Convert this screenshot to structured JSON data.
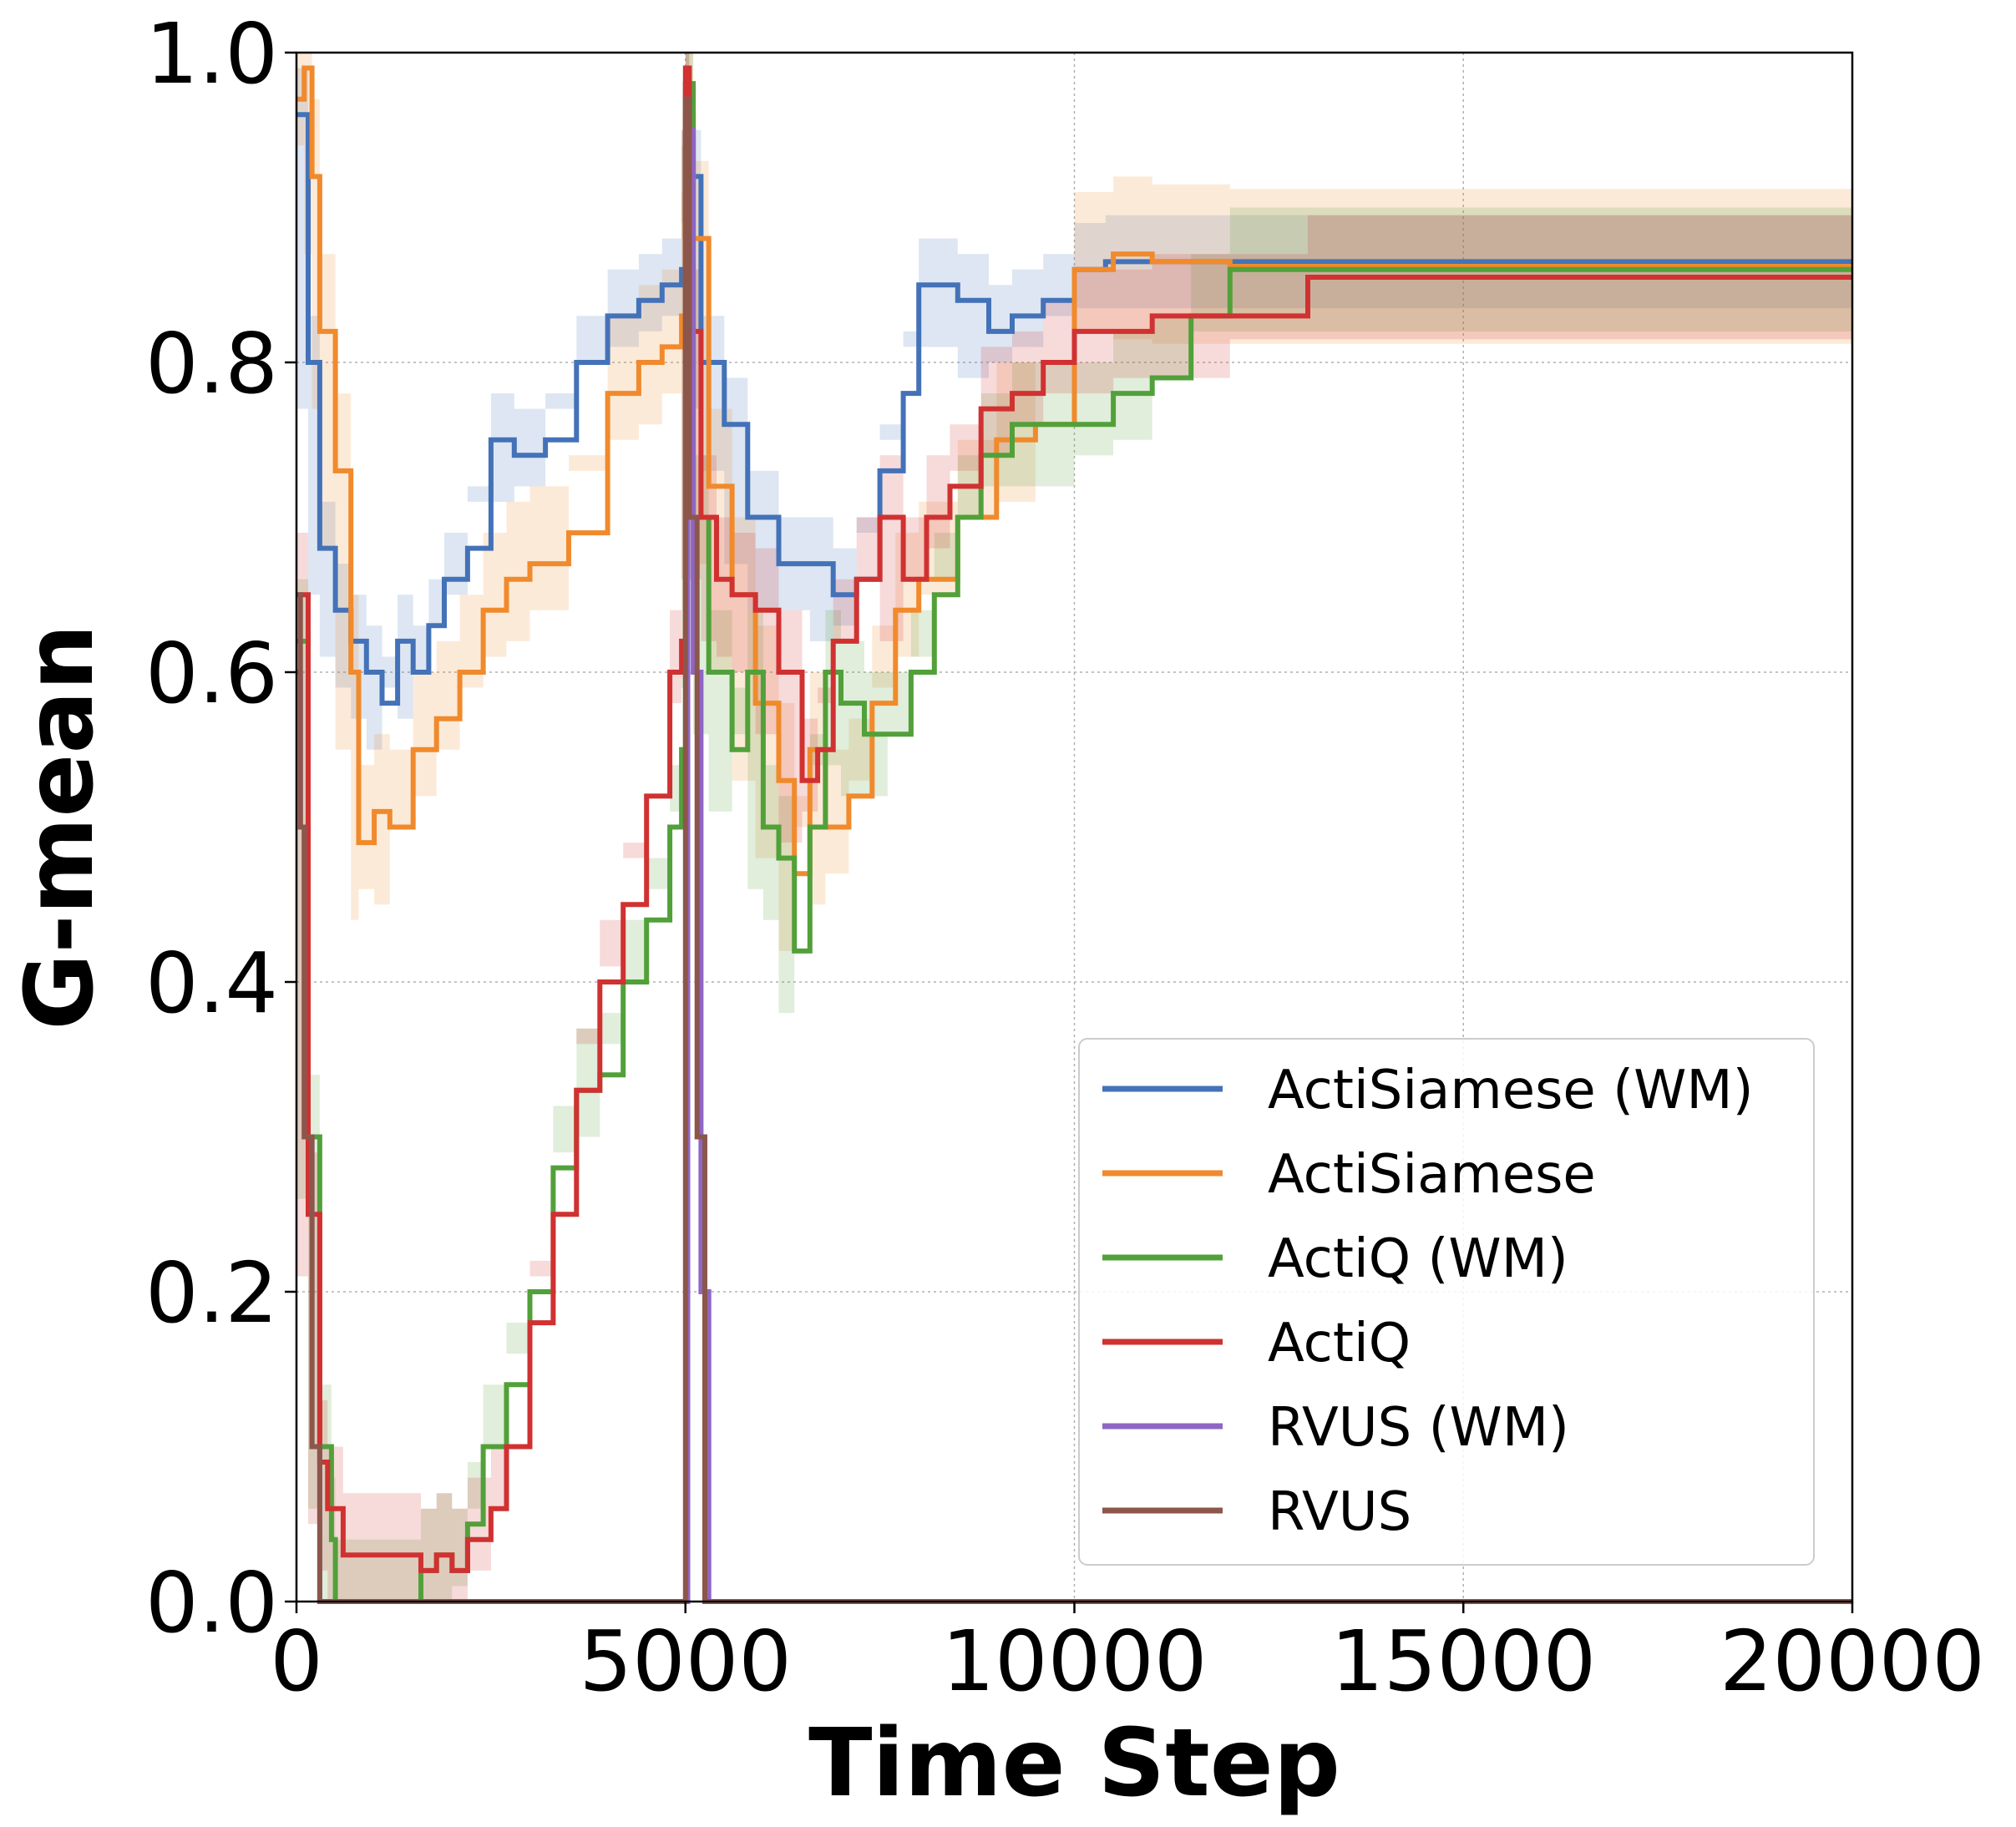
{
  "chart_data": {
    "type": "line",
    "title": "",
    "xlabel": "Time Step",
    "ylabel": "G-mean",
    "xlim": [
      0,
      20000
    ],
    "ylim": [
      0.0,
      1.0
    ],
    "xticks": [
      0,
      5000,
      10000,
      15000,
      20000
    ],
    "xtick_labels": [
      "0",
      "5000",
      "10000",
      "15000",
      "20000"
    ],
    "yticks": [
      0.0,
      0.2,
      0.4,
      0.6,
      0.8,
      1.0
    ],
    "ytick_labels": [
      "0.0",
      "0.2",
      "0.4",
      "0.6",
      "0.8",
      "1.0"
    ],
    "grid": true,
    "legend_position": "lower-right",
    "series": [
      {
        "name": "ActiSiamese (WM)",
        "color": "#4472b8",
        "band": 0.03,
        "x": [
          0,
          150,
          300,
          500,
          700,
          900,
          1100,
          1300,
          1500,
          1700,
          1900,
          2200,
          2500,
          2800,
          3200,
          3600,
          4000,
          4400,
          4700,
          4950,
          5000,
          5050,
          5200,
          5500,
          5800,
          6200,
          6600,
          6900,
          7200,
          7500,
          7800,
          8000,
          8500,
          8900,
          9200,
          9600,
          10000,
          10400,
          11000,
          12000,
          14000,
          16000,
          18000,
          20000
        ],
        "y": [
          0.96,
          0.8,
          0.68,
          0.64,
          0.62,
          0.6,
          0.58,
          0.62,
          0.6,
          0.63,
          0.66,
          0.68,
          0.75,
          0.74,
          0.75,
          0.8,
          0.83,
          0.84,
          0.85,
          0.86,
          0.98,
          0.92,
          0.8,
          0.76,
          0.7,
          0.67,
          0.67,
          0.65,
          0.66,
          0.73,
          0.78,
          0.85,
          0.84,
          0.82,
          0.83,
          0.84,
          0.86,
          0.865,
          0.865,
          0.865,
          0.865,
          0.865,
          0.865,
          0.865
        ]
      },
      {
        "name": "ActiSiamese",
        "color": "#f08a2c",
        "band": 0.05,
        "x": [
          0,
          100,
          200,
          300,
          500,
          700,
          800,
          1000,
          1200,
          1500,
          1800,
          2100,
          2400,
          2700,
          3000,
          3500,
          4000,
          4400,
          4700,
          4950,
          5000,
          5100,
          5300,
          5600,
          5900,
          6200,
          6400,
          6600,
          6800,
          7100,
          7400,
          7700,
          8000,
          8500,
          9000,
          9500,
          10000,
          10500,
          11000,
          12000,
          14000,
          16000,
          18000,
          20000
        ],
        "y": [
          0.97,
          0.99,
          0.92,
          0.82,
          0.73,
          0.6,
          0.49,
          0.51,
          0.5,
          0.55,
          0.57,
          0.6,
          0.64,
          0.66,
          0.67,
          0.69,
          0.78,
          0.8,
          0.81,
          0.83,
          0.96,
          0.88,
          0.72,
          0.65,
          0.58,
          0.53,
          0.47,
          0.55,
          0.5,
          0.52,
          0.58,
          0.64,
          0.66,
          0.7,
          0.75,
          0.76,
          0.86,
          0.87,
          0.865,
          0.862,
          0.862,
          0.862,
          0.862,
          0.862
        ]
      },
      {
        "name": "ActiQ (WM)",
        "color": "#52a03a",
        "band": 0.04,
        "x": [
          0,
          150,
          300,
          450,
          500,
          1500,
          1600,
          1800,
          2000,
          2200,
          2400,
          2700,
          3000,
          3300,
          3600,
          3900,
          4200,
          4500,
          4800,
          4950,
          5000,
          5100,
          5300,
          5600,
          5800,
          6000,
          6200,
          6400,
          6600,
          6800,
          7000,
          7300,
          7600,
          7900,
          8200,
          8500,
          8800,
          9200,
          9600,
          10000,
          10500,
          11000,
          11500,
          12000,
          13000,
          15000,
          17000,
          20000
        ],
        "y": [
          0.62,
          0.3,
          0.1,
          0.04,
          0.0,
          0.0,
          0.02,
          0.03,
          0.02,
          0.05,
          0.1,
          0.14,
          0.2,
          0.28,
          0.33,
          0.34,
          0.4,
          0.44,
          0.5,
          0.55,
          0.98,
          0.7,
          0.6,
          0.55,
          0.6,
          0.5,
          0.48,
          0.42,
          0.5,
          0.6,
          0.58,
          0.56,
          0.56,
          0.6,
          0.65,
          0.7,
          0.74,
          0.76,
          0.76,
          0.76,
          0.78,
          0.79,
          0.83,
          0.86,
          0.86,
          0.86,
          0.86,
          0.86
        ]
      },
      {
        "name": "ActiQ",
        "color": "#d03131",
        "band": 0.04,
        "x": [
          0,
          150,
          300,
          400,
          600,
          700,
          1000,
          1300,
          1600,
          1800,
          2000,
          2200,
          2500,
          2700,
          3000,
          3300,
          3600,
          3900,
          4200,
          4500,
          4800,
          4950,
          5000,
          5050,
          5200,
          5400,
          5600,
          5900,
          6200,
          6500,
          6700,
          6900,
          7200,
          7500,
          7800,
          8100,
          8400,
          8800,
          9200,
          9600,
          10000,
          10500,
          11000,
          12000,
          13000,
          15000,
          17000,
          20000
        ],
        "y": [
          0.65,
          0.25,
          0.09,
          0.06,
          0.03,
          0.03,
          0.03,
          0.03,
          0.02,
          0.03,
          0.02,
          0.04,
          0.06,
          0.1,
          0.18,
          0.25,
          0.33,
          0.4,
          0.45,
          0.52,
          0.6,
          0.62,
          0.99,
          0.82,
          0.7,
          0.66,
          0.65,
          0.64,
          0.6,
          0.53,
          0.55,
          0.62,
          0.66,
          0.7,
          0.66,
          0.7,
          0.72,
          0.77,
          0.78,
          0.8,
          0.82,
          0.82,
          0.83,
          0.83,
          0.855,
          0.855,
          0.855,
          0.855
        ]
      },
      {
        "name": "RVUS (WM)",
        "color": "#8e66c4",
        "band": 0.0,
        "x": [
          0,
          50,
          100,
          200,
          300,
          5000,
          5030,
          5100,
          5200,
          5300,
          20000
        ],
        "y": [
          0.6,
          0.5,
          0.3,
          0.1,
          0.0,
          0.0,
          0.95,
          0.6,
          0.2,
          0.0,
          0.0
        ]
      },
      {
        "name": "RVUS",
        "color": "#8c564b",
        "band": 0.0,
        "x": [
          0,
          50,
          100,
          200,
          300,
          4980,
          5000,
          5050,
          5150,
          5250,
          20000
        ],
        "y": [
          0.65,
          0.5,
          0.3,
          0.1,
          0.0,
          0.0,
          0.97,
          0.7,
          0.3,
          0.0,
          0.0
        ]
      }
    ]
  }
}
